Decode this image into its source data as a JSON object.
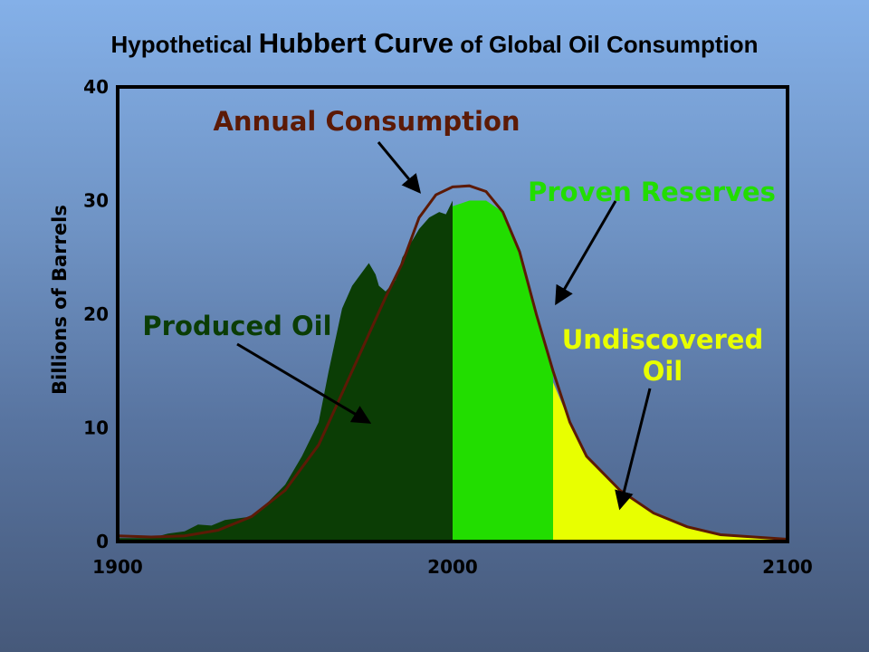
{
  "title_parts": [
    "Hypothetical ",
    "Hubbert Curve",
    " of Global Oil Consumption"
  ],
  "chart_data": {
    "type": "area",
    "title": "Hypothetical Hubbert Curve of Global Oil Consumption",
    "xlabel": "",
    "ylabel": "Billions of Barrels",
    "xlim": [
      1900,
      2100
    ],
    "ylim": [
      0,
      40
    ],
    "x_ticks": [
      "1900",
      "2000",
      "2100"
    ],
    "y_ticks": [
      "0",
      "10",
      "20",
      "30",
      "40"
    ],
    "grid": false,
    "curve": {
      "name": "Annual Consumption",
      "color": "#5c1a06",
      "x": [
        1900,
        1910,
        1920,
        1930,
        1940,
        1950,
        1960,
        1970,
        1980,
        1985,
        1990,
        1995,
        2000,
        2005,
        2010,
        2015,
        2020,
        2025,
        2030,
        2035,
        2040,
        2050,
        2060,
        2070,
        2080,
        2090,
        2100
      ],
      "y": [
        0.5,
        0.4,
        0.5,
        1.0,
        2.2,
        4.5,
        8.5,
        15.0,
        21.5,
        24.5,
        28.5,
        30.5,
        31.2,
        31.3,
        30.8,
        29.0,
        25.5,
        20.0,
        15.0,
        10.5,
        7.5,
        4.5,
        2.5,
        1.3,
        0.6,
        0.4,
        0.2
      ]
    },
    "areas": [
      {
        "name": "Produced Oil",
        "color": "#0b3d05",
        "x": [
          1900,
          1910,
          1915,
          1920,
          1924,
          1928,
          1932,
          1935,
          1940,
          1945,
          1950,
          1955,
          1960,
          1963,
          1967,
          1970,
          1975,
          1977,
          1978,
          1980,
          1983,
          1985,
          1987,
          1990,
          1993,
          1996,
          1998,
          2000
        ],
        "y": [
          0.3,
          0.3,
          0.7,
          0.9,
          1.5,
          1.4,
          1.9,
          2.0,
          2.2,
          3.5,
          5.0,
          7.5,
          10.5,
          15.0,
          20.5,
          22.5,
          24.5,
          23.5,
          22.5,
          22.0,
          23.0,
          25.0,
          26.0,
          27.5,
          28.5,
          29.0,
          28.8,
          30.0
        ]
      },
      {
        "name": "Proven Reserves",
        "color": "#22dd00",
        "x": [
          2000,
          2005,
          2010,
          2015,
          2020,
          2025,
          2030
        ],
        "y": [
          29.5,
          30.0,
          30.0,
          29.0,
          25.5,
          20.0,
          15.0
        ]
      },
      {
        "name": "Undiscovered Oil",
        "color": "#e8ff00",
        "x": [
          2030,
          2035,
          2040,
          2050,
          2060,
          2070,
          2080,
          2090,
          2100
        ],
        "y": [
          14.0,
          10.5,
          7.5,
          4.5,
          2.5,
          1.3,
          0.6,
          0.4,
          0.2
        ]
      }
    ],
    "annotations": [
      {
        "text": "Annual Consumption",
        "color": "#5c1a06",
        "arrow_to": [
          1990,
          30.8
        ]
      },
      {
        "text": "Proven Reserves",
        "color": "#22dd00",
        "arrow_to": [
          2031,
          21.0
        ]
      },
      {
        "text": "Produced Oil",
        "color": "#0b3d05",
        "arrow_to": [
          1975,
          10.5
        ]
      },
      {
        "text": "Undiscovered Oil",
        "lines": [
          "Undiscovered",
          "Oil"
        ],
        "color": "#e8ff00",
        "arrow_to": [
          2050,
          3.0
        ]
      }
    ]
  }
}
